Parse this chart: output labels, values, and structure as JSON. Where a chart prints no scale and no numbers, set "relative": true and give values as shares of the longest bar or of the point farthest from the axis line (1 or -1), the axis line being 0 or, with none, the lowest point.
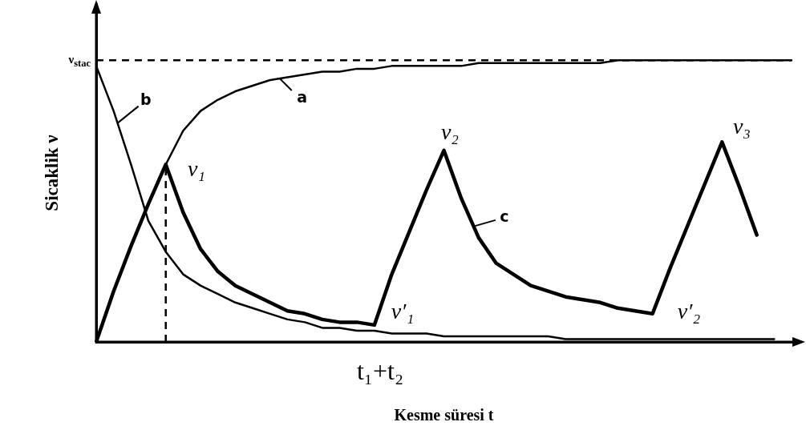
{
  "chart_data": {
    "type": "line",
    "relative": true,
    "xlabel": "Kesme süresi t",
    "ylabel": "Sicaklik ν",
    "marker": "none",
    "categories": [
      null,
      null,
      null,
      null,
      null,
      null,
      null,
      null,
      null,
      null,
      null,
      null,
      null,
      null,
      null,
      null,
      null,
      null,
      null,
      null,
      null,
      null,
      null,
      null,
      null,
      null,
      null,
      null,
      null,
      null,
      null,
      null,
      null,
      null,
      null,
      null,
      null,
      null,
      null,
      null,
      null
    ],
    "series": [
      {
        "name": "a",
        "color": "#000000",
        "values": [
          0,
          0.18,
          0.34,
          0.49,
          0.63,
          0.75,
          0.82,
          0.86,
          0.89,
          0.91,
          0.93,
          0.94,
          0.95,
          0.96,
          0.96,
          0.97,
          0.97,
          0.98,
          0.98,
          0.98,
          0.98,
          0.98,
          0.99,
          0.99,
          0.99,
          0.99,
          0.99,
          0.99,
          0.99,
          0.99,
          1,
          1,
          1,
          1,
          1,
          1,
          1,
          1,
          1,
          1,
          1
        ]
      },
      {
        "name": "b",
        "color": "#000000",
        "values": [
          0.98,
          0.82,
          0.63,
          0.43,
          0.32,
          0.24,
          0.2,
          0.17,
          0.14,
          0.12,
          0.1,
          0.08,
          0.07,
          0.05,
          0.05,
          0.04,
          0.04,
          0.03,
          0.03,
          0.03,
          0.02,
          0.02,
          0.02,
          0.02,
          0.02,
          0.02,
          0.02,
          0.01,
          0.01,
          0.01,
          0.01,
          0.01,
          0.01,
          0.01,
          0.01,
          0.01,
          0.01,
          0.01,
          0.01,
          0.01,
          null
        ]
      },
      {
        "name": "c",
        "color": "#000000",
        "values": [
          0,
          0.18,
          0.34,
          0.49,
          0.63,
          0.46,
          0.33,
          0.25,
          0.2,
          0.17,
          0.14,
          0.11,
          0.1,
          0.08,
          0.07,
          0.07,
          0.06,
          0.24,
          0.39,
          0.54,
          0.68,
          0.51,
          0.37,
          0.28,
          0.24,
          0.2,
          0.18,
          0.16,
          0.15,
          0.14,
          0.12,
          0.11,
          0.1,
          0.26,
          0.41,
          0.56,
          0.71,
          0.55,
          0.38,
          null,
          null
        ]
      }
    ],
    "ref_lines": [
      {
        "axis": "y",
        "value": 1,
        "label": "ν$_{stac}$",
        "line_style": "dashed",
        "color": "#000000"
      }
    ],
    "annotations": [
      "ν₁",
      "ν′₁",
      "ν₂",
      "ν′₂",
      "ν₃",
      "t₁+t₂"
    ]
  }
}
